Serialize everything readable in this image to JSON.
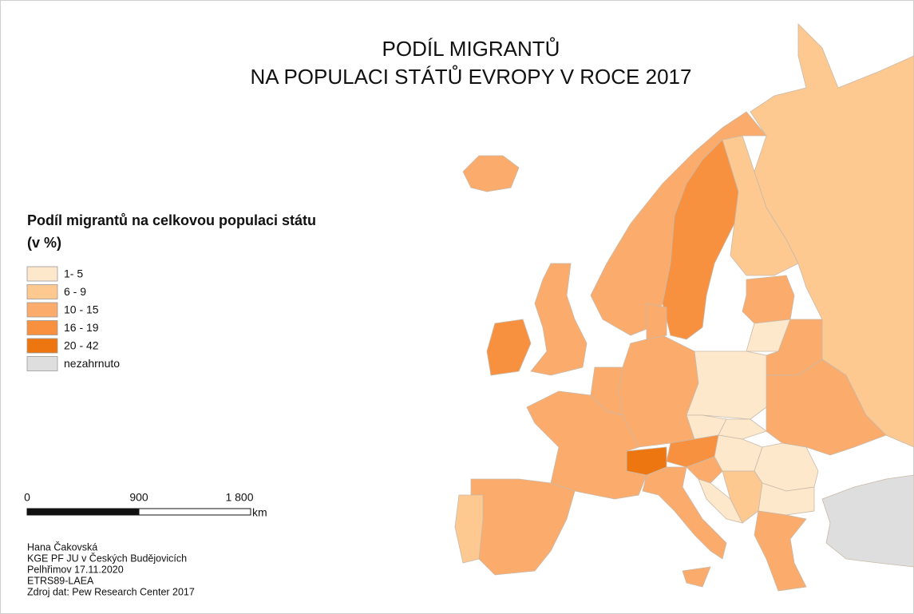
{
  "title": [
    "PODÍL MIGRANTŮ",
    "NA POPULACI STÁTŮ EVROPY V ROCE 2017"
  ],
  "legend": {
    "title": [
      "Podíl migrantů na celkovou populaci státu",
      "(v %)"
    ],
    "items": [
      {
        "label": "1- 5",
        "color": "#fde8cc"
      },
      {
        "label": "6 - 9",
        "color": "#fdc991"
      },
      {
        "label": "10 - 15",
        "color": "#fbab6b"
      },
      {
        "label": "16 - 19",
        "color": "#f7913f"
      },
      {
        "label": "20 - 42",
        "color": "#ee7611"
      },
      {
        "label": "nezahrnuto",
        "color": "#dedede"
      }
    ]
  },
  "scale_bar": {
    "labels": [
      "0",
      "900",
      "1 800"
    ],
    "unit": "km"
  },
  "credits": [
    "Hana Čakovská",
    "KGE PF JU v Českých Budějovicích",
    "Pelhřimov 17.11.2020",
    "ETRS89-LAEA",
    "Zdroj dat: Pew Research Center 2017"
  ]
}
